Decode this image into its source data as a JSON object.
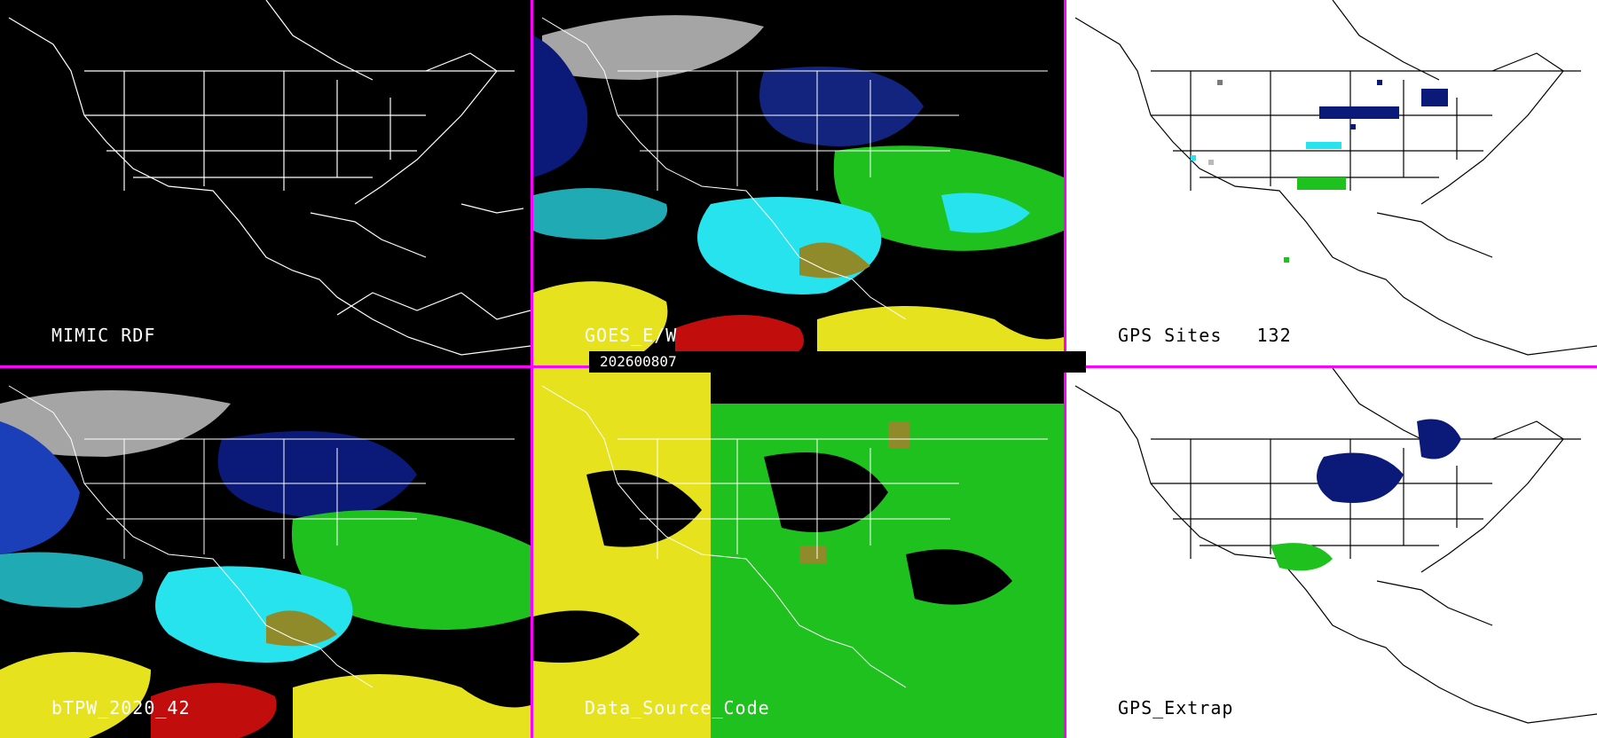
{
  "panels": [
    {
      "id": "mimic_rdf",
      "label": "MIMIC RDF",
      "theme": "dark"
    },
    {
      "id": "goes_ew",
      "label": "GOES_E/W",
      "theme": "dark"
    },
    {
      "id": "gps_sites",
      "label": "GPS Sites",
      "count": "132",
      "theme": "light"
    },
    {
      "id": "btpw",
      "label": "bTPW_2020_42",
      "theme": "dark"
    },
    {
      "id": "data_source_code",
      "label": "Data_Source_Code",
      "theme": "dark"
    },
    {
      "id": "gps_extrap",
      "label": "GPS_Extrap",
      "theme": "light"
    }
  ],
  "timestamp": "202600807",
  "colors": {
    "divider": "#ff00ff",
    "dark_bg": "#000000",
    "light_bg": "#ffffff",
    "navy": "#0b1a78",
    "blue": "#1b3fb8",
    "cyan": "#27e3ee",
    "teal": "#1faab4",
    "green": "#1ec11e",
    "lime": "#5fe03c",
    "yellow": "#e6e31e",
    "olive": "#8f8a2a",
    "red": "#c20d0d",
    "gray": "#b9b9b9"
  }
}
